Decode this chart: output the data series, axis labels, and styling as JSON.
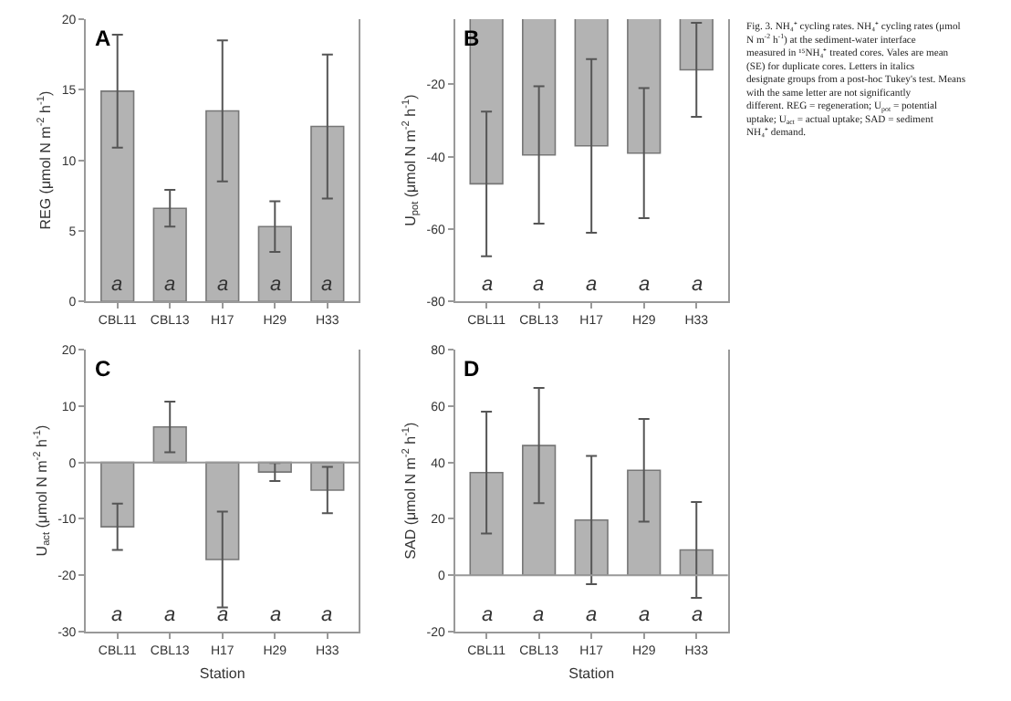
{
  "chart_data": [
    {
      "type": "bar",
      "title": "A",
      "ylabel": "REG (μmol N m$^{-2}$ h$^{-1}$)",
      "categories": [
        "CBL11",
        "CBL13",
        "H17",
        "H29",
        "H33"
      ],
      "values": [
        14.9,
        6.6,
        13.5,
        5.3,
        12.4
      ],
      "errors": [
        4,
        1.3,
        5,
        1.8,
        5.1
      ],
      "color": "#b3b3b3",
      "ylim": [
        0,
        20
      ],
      "yticks": [
        0,
        5,
        10,
        15,
        20
      ],
      "annotations": [
        "a",
        "a",
        "a",
        "a",
        "a"
      ]
    },
    {
      "type": "bar",
      "title": "B",
      "ylabel": "U$_{pot}$ (μmol N m$^{-2}$ h$^{-1}$)",
      "categories": [
        "CBL11",
        "CBL13",
        "H17",
        "H29",
        "H33"
      ],
      "values": [
        -47.5,
        -39.5,
        -37,
        -39,
        -16
      ],
      "errors": [
        20,
        19,
        24,
        18,
        13
      ],
      "color": "#b3b3b3",
      "ylim": [
        -80,
        -2
      ],
      "yticks": [
        -80,
        -60,
        -40,
        -20
      ],
      "annotations": [
        "a",
        "a",
        "a",
        "a",
        "a"
      ]
    },
    {
      "type": "bar",
      "title": "C",
      "xlabel": "Station",
      "ylabel": "U$_{act}$ (μmol N m$^{-2}$ h$^{-1}$)",
      "categories": [
        "CBL11",
        "CBL13",
        "H17",
        "H29",
        "H33"
      ],
      "values": [
        -11.4,
        6.3,
        -17.2,
        -1.7,
        -4.9
      ],
      "errors": [
        4.1,
        4.5,
        8.5,
        1.6,
        4.1
      ],
      "color": "#b3b3b3",
      "ylim": [
        -30,
        20
      ],
      "yticks": [
        -30,
        -20,
        -10,
        0,
        10,
        20
      ],
      "ref_lines": [
        {
          "axis": "y",
          "value": 0,
          "color": "#999999"
        }
      ],
      "annotations": [
        "a",
        "a",
        "a",
        "a",
        "a"
      ]
    },
    {
      "type": "bar",
      "title": "D",
      "xlabel": "Station",
      "ylabel": "SAD (μmol N m$^{-2}$ h$^{-1}$)",
      "categories": [
        "CBL11",
        "CBL13",
        "H17",
        "H29",
        "H33"
      ],
      "values": [
        36.4,
        46,
        19.6,
        37.2,
        9
      ],
      "errors": [
        21.6,
        20.4,
        22.7,
        18.2,
        17
      ],
      "color": "#b3b3b3",
      "ylim": [
        -20,
        80
      ],
      "yticks": [
        -20,
        0,
        20,
        40,
        60,
        80
      ],
      "ref_lines": [
        {
          "axis": "y",
          "value": 0,
          "color": "#999999"
        }
      ],
      "annotations": [
        "a",
        "a",
        "a",
        "a",
        "a"
      ]
    },
    {
      "type": "other",
      "annotations": [
        "Fig. 3. NH₄⁺ cycling rates. NH₄⁺ cycling rates (μmol N m$^{-2}$ h$^{-1}$) at the sediment-water interface measured in ¹⁵NH₄⁺ treated cores. Vales are mean (SE) for duplicate cores. Letters in italics designate groups from a post-hoc Tukey's test. Means with the same letter are not significantly different. REG = regeneration; U$_{pot}$ = potential uptake; U$_{act}$ = actual uptake; SAD = sediment NH₄⁺ demand."
      ]
    }
  ]
}
